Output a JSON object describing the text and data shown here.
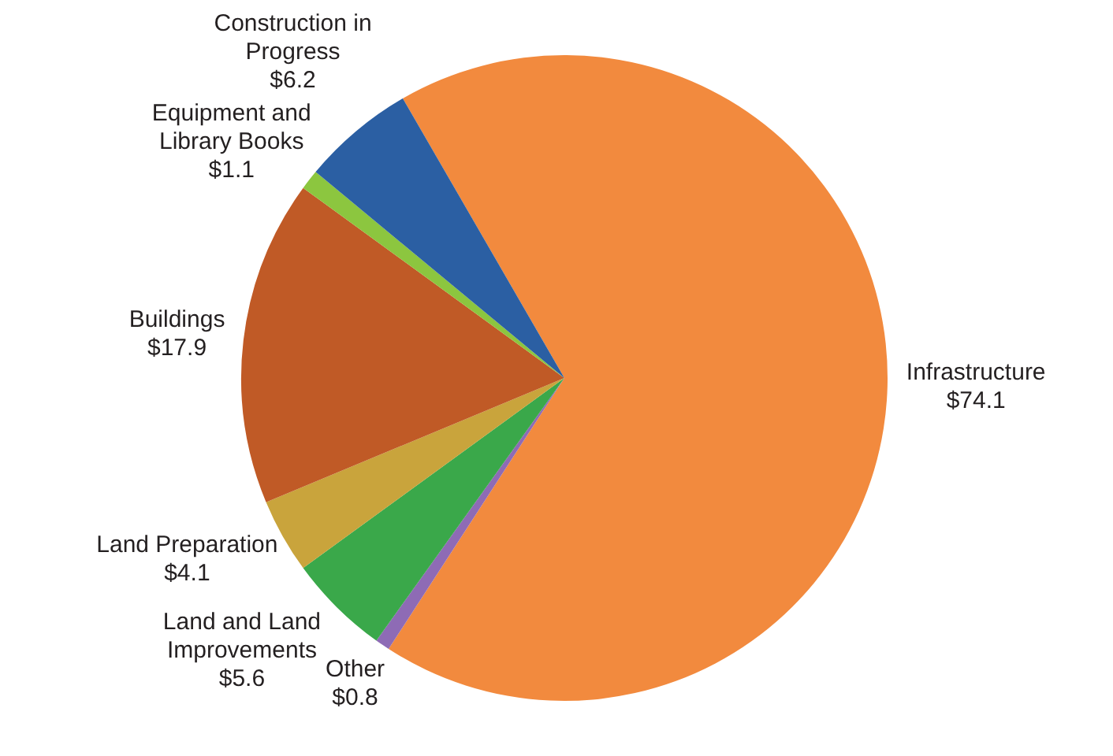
{
  "chart_data": {
    "type": "pie",
    "categories": [
      "Infrastructure",
      "Other",
      "Land and Land Improvements",
      "Land Preparation",
      "Buildings",
      "Equipment and Library Books",
      "Construction in Progress"
    ],
    "values": [
      74.1,
      0.8,
      5.6,
      4.1,
      17.9,
      1.1,
      6.2
    ],
    "value_labels": [
      "$74.1",
      "$0.8",
      "$5.6",
      "$4.1",
      "$17.9",
      "$1.1",
      "$6.2"
    ],
    "colors": [
      "#f28a3e",
      "#8e6bb5",
      "#3aa84a",
      "#c9a43c",
      "#c05a26",
      "#8cc63f",
      "#2b5fa3"
    ],
    "legend": false
  }
}
